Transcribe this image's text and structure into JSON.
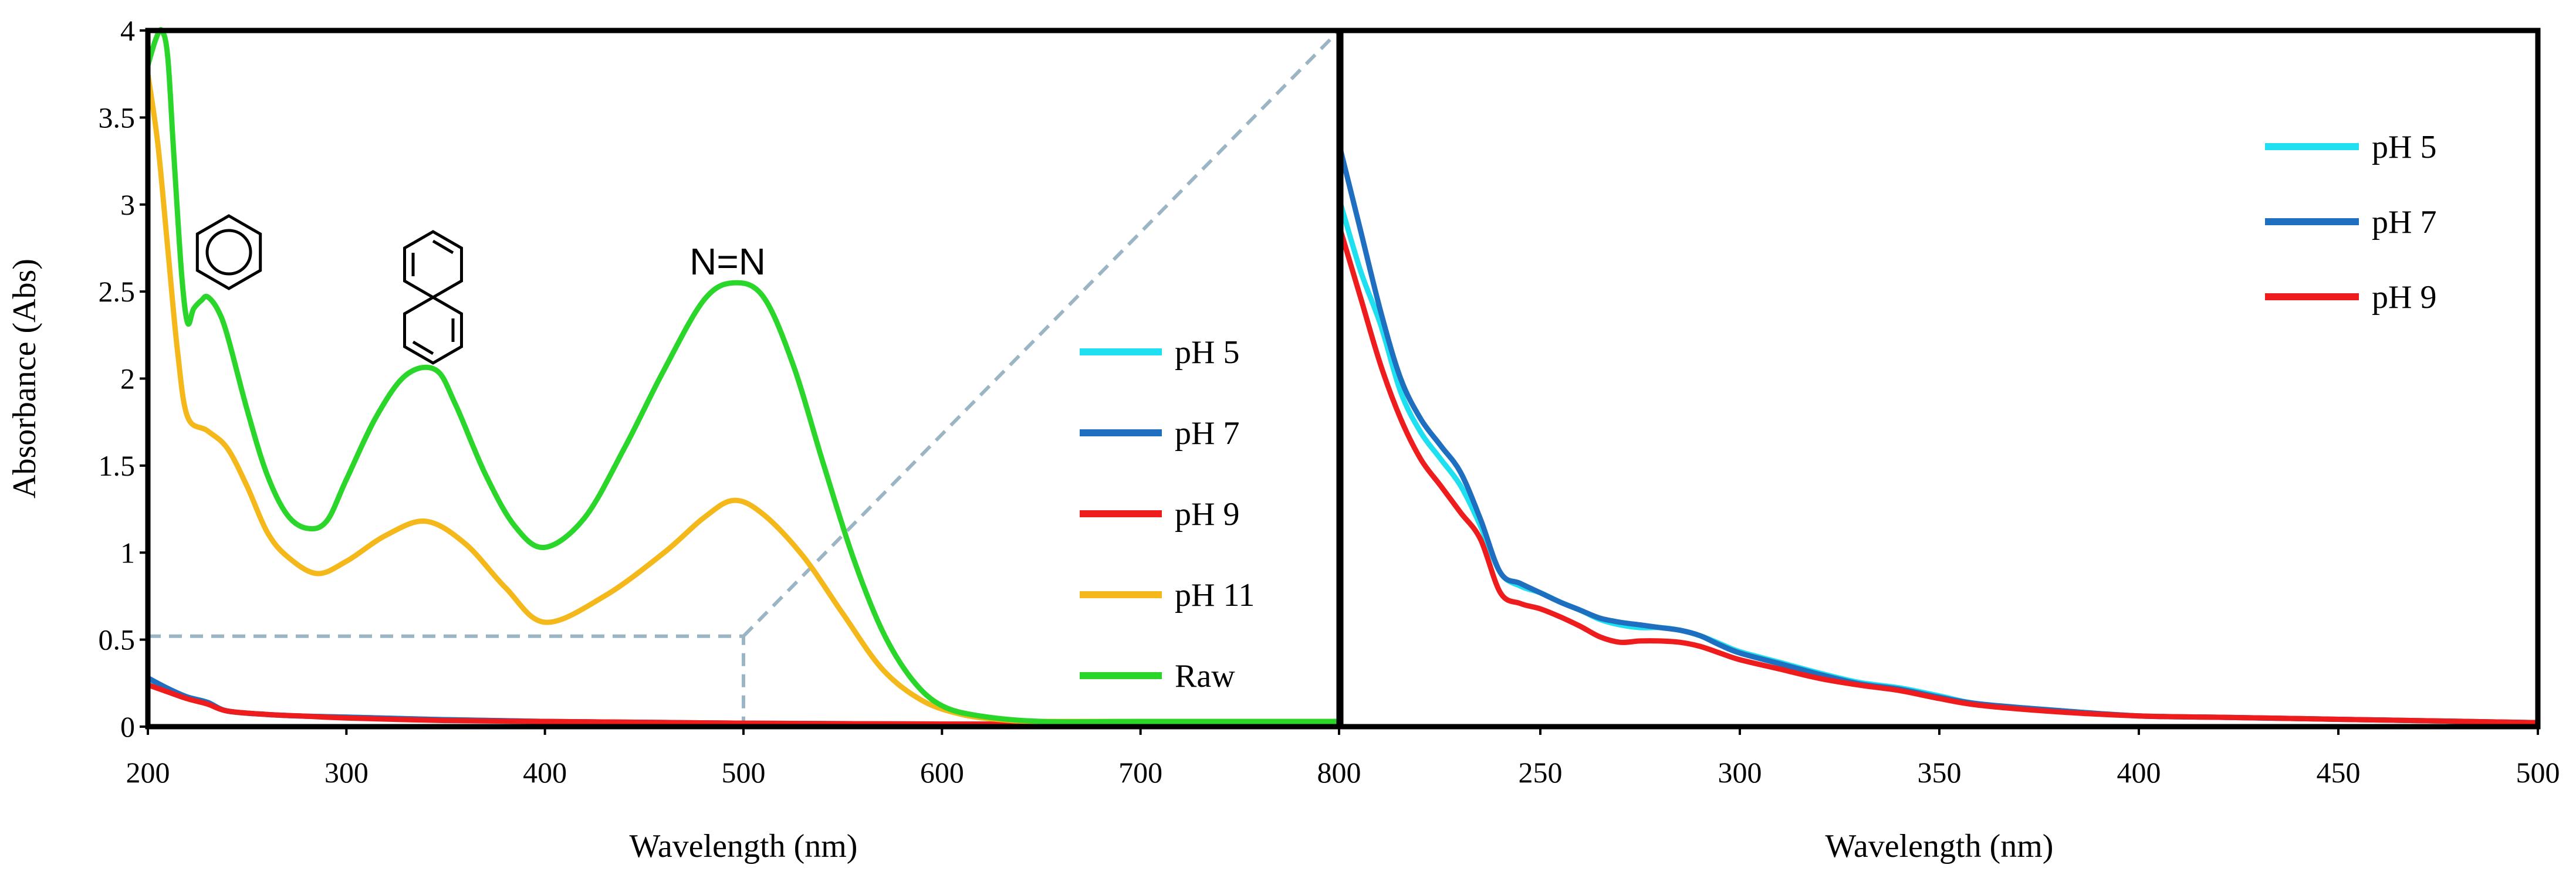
{
  "chart_data": [
    {
      "type": "line",
      "xlabel": "Wavelength (nm)",
      "ylabel": "Absorbance (Abs)",
      "xlim": [
        200,
        800
      ],
      "ylim": [
        0,
        4
      ],
      "xticks": [
        "200",
        "300",
        "400",
        "500",
        "600",
        "700",
        "800"
      ],
      "yticks": [
        "0",
        "0.5",
        "1",
        "1.5",
        "2",
        "2.5",
        "3",
        "3.5",
        "4"
      ],
      "grid": false,
      "legend_position": "right",
      "annotations": [
        "benzene ring",
        "naphthalene",
        "N=N"
      ],
      "azo_label": "N=N",
      "zoom_box": {
        "x": [
          200,
          500
        ],
        "y": [
          0,
          0.52
        ]
      },
      "series": [
        {
          "name": "pH 5",
          "color": "#1FE0F0",
          "x": [
            200,
            210,
            220,
            230,
            240,
            260,
            280,
            300,
            350,
            400,
            450,
            500,
            600,
            700,
            800
          ],
          "y": [
            0.27,
            0.21,
            0.17,
            0.14,
            0.09,
            0.07,
            0.06,
            0.055,
            0.04,
            0.03,
            0.025,
            0.02,
            0.015,
            0.012,
            0.01
          ]
        },
        {
          "name": "pH 7",
          "color": "#1F6FC0",
          "x": [
            200,
            210,
            220,
            230,
            240,
            260,
            280,
            300,
            350,
            400,
            450,
            500,
            600,
            700,
            800
          ],
          "y": [
            0.28,
            0.22,
            0.17,
            0.14,
            0.09,
            0.07,
            0.06,
            0.055,
            0.04,
            0.03,
            0.025,
            0.02,
            0.015,
            0.012,
            0.01
          ]
        },
        {
          "name": "pH 9",
          "color": "#EE1C1C",
          "x": [
            200,
            210,
            220,
            230,
            240,
            260,
            280,
            300,
            350,
            400,
            450,
            500,
            600,
            700,
            800
          ],
          "y": [
            0.24,
            0.2,
            0.16,
            0.13,
            0.09,
            0.07,
            0.06,
            0.05,
            0.035,
            0.03,
            0.025,
            0.02,
            0.015,
            0.012,
            0.01
          ]
        },
        {
          "name": "pH 11",
          "color": "#F5B81A",
          "x": [
            200,
            205,
            210,
            215,
            220,
            230,
            240,
            250,
            260,
            270,
            285,
            300,
            320,
            340,
            360,
            380,
            400,
            430,
            460,
            480,
            495,
            510,
            530,
            550,
            570,
            590,
            610,
            630,
            650,
            700,
            800
          ],
          "y": [
            3.75,
            3.35,
            2.75,
            2.15,
            1.78,
            1.7,
            1.6,
            1.38,
            1.12,
            0.98,
            0.88,
            0.95,
            1.1,
            1.18,
            1.05,
            0.8,
            0.6,
            0.75,
            1.0,
            1.2,
            1.3,
            1.22,
            0.98,
            0.65,
            0.33,
            0.15,
            0.07,
            0.04,
            0.03,
            0.03,
            0.03
          ]
        },
        {
          "name": "Raw",
          "color": "#2BD62B",
          "x": [
            200,
            204,
            207,
            210,
            213,
            217,
            220,
            223,
            227,
            230,
            235,
            240,
            250,
            260,
            270,
            280,
            290,
            300,
            315,
            330,
            345,
            355,
            370,
            385,
            400,
            420,
            440,
            460,
            480,
            495,
            510,
            525,
            540,
            555,
            570,
            585,
            600,
            620,
            650,
            700,
            800
          ],
          "y": [
            3.8,
            3.95,
            4.0,
            3.85,
            3.3,
            2.6,
            2.32,
            2.4,
            2.45,
            2.47,
            2.4,
            2.25,
            1.82,
            1.45,
            1.22,
            1.14,
            1.18,
            1.42,
            1.78,
            2.02,
            2.05,
            1.85,
            1.45,
            1.15,
            1.03,
            1.2,
            1.6,
            2.05,
            2.45,
            2.55,
            2.47,
            2.08,
            1.52,
            0.98,
            0.55,
            0.27,
            0.12,
            0.06,
            0.03,
            0.03,
            0.03
          ]
        }
      ]
    },
    {
      "type": "line",
      "xlabel": "Wavelength (nm)",
      "ylabel": "",
      "xlim": [
        200,
        500
      ],
      "ylim": [
        0,
        0.52
      ],
      "xticks": [
        "250",
        "300",
        "350",
        "400",
        "450",
        "500"
      ],
      "grid": false,
      "legend_position": "top-right",
      "series": [
        {
          "name": "pH 5",
          "color": "#1FE0F0",
          "x": [
            200,
            205,
            210,
            215,
            220,
            225,
            230,
            235,
            240,
            245,
            250,
            255,
            260,
            265,
            270,
            275,
            280,
            285,
            290,
            295,
            300,
            310,
            320,
            330,
            340,
            350,
            360,
            380,
            400,
            420,
            440,
            460,
            480,
            500
          ],
          "y": [
            0.39,
            0.34,
            0.3,
            0.25,
            0.22,
            0.2,
            0.18,
            0.15,
            0.115,
            0.105,
            0.1,
            0.093,
            0.087,
            0.08,
            0.076,
            0.074,
            0.074,
            0.072,
            0.068,
            0.062,
            0.056,
            0.048,
            0.04,
            0.033,
            0.029,
            0.023,
            0.017,
            0.012,
            0.008,
            0.007,
            0.006,
            0.005,
            0.004,
            0.003
          ]
        },
        {
          "name": "pH 7",
          "color": "#1F6FC0",
          "x": [
            200,
            205,
            210,
            215,
            220,
            225,
            230,
            235,
            240,
            245,
            250,
            255,
            260,
            265,
            270,
            275,
            280,
            285,
            290,
            295,
            300,
            310,
            320,
            330,
            340,
            350,
            360,
            380,
            400,
            420,
            440,
            460,
            480,
            500
          ],
          "y": [
            0.43,
            0.37,
            0.31,
            0.26,
            0.23,
            0.21,
            0.19,
            0.155,
            0.115,
            0.107,
            0.1,
            0.093,
            0.087,
            0.081,
            0.078,
            0.076,
            0.074,
            0.072,
            0.068,
            0.061,
            0.055,
            0.047,
            0.039,
            0.032,
            0.028,
            0.022,
            0.017,
            0.012,
            0.008,
            0.007,
            0.006,
            0.005,
            0.004,
            0.003
          ]
        },
        {
          "name": "pH 9",
          "color": "#EE1C1C",
          "x": [
            200,
            205,
            210,
            215,
            220,
            225,
            230,
            235,
            240,
            245,
            250,
            255,
            260,
            265,
            270,
            275,
            280,
            285,
            290,
            295,
            300,
            310,
            320,
            330,
            340,
            350,
            360,
            380,
            400,
            420,
            440,
            460,
            480,
            500
          ],
          "y": [
            0.37,
            0.32,
            0.27,
            0.23,
            0.2,
            0.18,
            0.16,
            0.14,
            0.1,
            0.092,
            0.088,
            0.082,
            0.075,
            0.067,
            0.063,
            0.064,
            0.064,
            0.063,
            0.06,
            0.055,
            0.05,
            0.043,
            0.036,
            0.031,
            0.027,
            0.021,
            0.016,
            0.011,
            0.008,
            0.007,
            0.006,
            0.005,
            0.004,
            0.003
          ]
        }
      ]
    }
  ]
}
